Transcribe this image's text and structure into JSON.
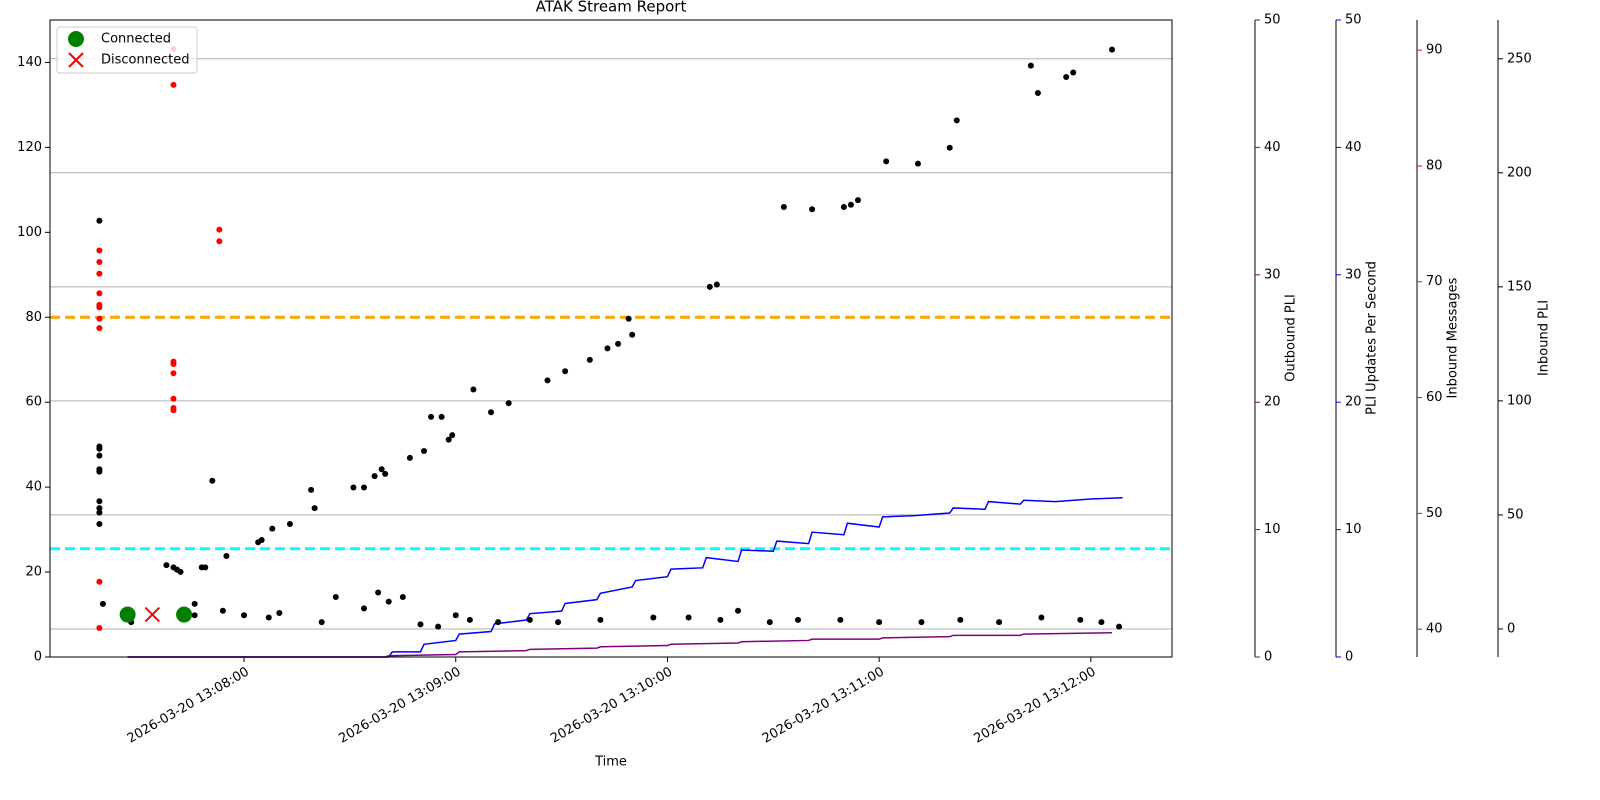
{
  "chart_data": {
    "type": "scatter",
    "title": "ATAK Stream Report",
    "xlabel": "Time",
    "xlim": [
      "2026-03-20 13:07:05",
      "2026-03-20 13:12:23"
    ],
    "xticks": [
      "2026-03-20 13:08:00",
      "2026-03-20 13:09:00",
      "2026-03-20 13:10:00",
      "2026-03-20 13:11:00",
      "2026-03-20 13:12:00"
    ],
    "ylim": [
      0,
      150
    ],
    "yticks": [
      0,
      20,
      40,
      60,
      80,
      100,
      120,
      140
    ],
    "y2label": "Outbound PLI",
    "y2color": "purple",
    "y2lim": [
      0,
      50
    ],
    "y2ticks": [
      0,
      10,
      20,
      30,
      40,
      50
    ],
    "y3label": "PLI Updates Per Second",
    "y3color": "blue",
    "y3lim": [
      0,
      50
    ],
    "y3ticks": [
      0,
      10,
      20,
      30,
      40,
      50
    ],
    "y4label": "Inbound Messages",
    "y4color": "red",
    "y4lim": [
      37.6,
      92.6
    ],
    "y4ticks": [
      40,
      50,
      60,
      70,
      80,
      90
    ],
    "y5label": "Inbound PLI",
    "y5color": "black",
    "y5lim": [
      -12.3,
      267
    ],
    "y5ticks": [
      0,
      50,
      100,
      150,
      200,
      250
    ],
    "grid": "y5",
    "legend": "upper left",
    "hlines": [
      {
        "value": 80,
        "color": "orange"
      },
      {
        "value": 25.5,
        "color": "cyan"
      }
    ],
    "series": [
      {
        "type": "line",
        "axis": "y3",
        "color": "blue",
        "x": [
          "2026-03-20 13:07:27",
          "2026-03-20 13:08:41",
          "2026-03-20 13:08:42",
          "2026-03-20 13:08:50",
          "2026-03-20 13:08:51",
          "2026-03-20 13:09:00",
          "2026-03-20 13:09:01",
          "2026-03-20 13:09:10",
          "2026-03-20 13:09:11",
          "2026-03-20 13:09:20",
          "2026-03-20 13:09:21",
          "2026-03-20 13:09:30",
          "2026-03-20 13:09:31",
          "2026-03-20 13:09:40",
          "2026-03-20 13:09:41",
          "2026-03-20 13:09:50",
          "2026-03-20 13:09:51",
          "2026-03-20 13:10:00",
          "2026-03-20 13:10:01",
          "2026-03-20 13:10:10",
          "2026-03-20 13:10:11",
          "2026-03-20 13:10:20",
          "2026-03-20 13:10:21",
          "2026-03-20 13:10:30",
          "2026-03-20 13:10:31",
          "2026-03-20 13:10:40",
          "2026-03-20 13:10:41",
          "2026-03-20 13:10:50",
          "2026-03-20 13:10:51",
          "2026-03-20 13:11:00",
          "2026-03-20 13:11:01",
          "2026-03-20 13:11:10",
          "2026-03-20 13:11:20",
          "2026-03-20 13:11:21",
          "2026-03-20 13:11:30",
          "2026-03-20 13:11:31",
          "2026-03-20 13:11:40",
          "2026-03-20 13:11:41",
          "2026-03-20 13:11:50",
          "2026-03-20 13:12:00",
          "2026-03-20 13:12:09"
        ],
        "values": [
          0,
          0,
          0.4,
          0.4,
          1.0,
          1.3,
          1.8,
          2.0,
          2.6,
          2.9,
          3.4,
          3.6,
          4.2,
          4.5,
          5.0,
          5.5,
          6.0,
          6.3,
          6.9,
          7.0,
          7.8,
          7.5,
          8.4,
          8.3,
          9.1,
          8.9,
          9.8,
          9.6,
          10.5,
          10.2,
          11.0,
          11.1,
          11.3,
          11.7,
          11.6,
          12.2,
          12.0,
          12.3,
          12.2,
          12.4,
          12.5
        ]
      },
      {
        "type": "line",
        "axis": "y2",
        "color": "purple",
        "x": [
          "2026-03-20 13:07:27",
          "2026-03-20 13:08:40",
          "2026-03-20 13:08:41",
          "2026-03-20 13:09:00",
          "2026-03-20 13:09:01",
          "2026-03-20 13:09:20",
          "2026-03-20 13:09:21",
          "2026-03-20 13:09:40",
          "2026-03-20 13:09:41",
          "2026-03-20 13:10:00",
          "2026-03-20 13:10:01",
          "2026-03-20 13:10:20",
          "2026-03-20 13:10:21",
          "2026-03-20 13:10:40",
          "2026-03-20 13:10:41",
          "2026-03-20 13:11:00",
          "2026-03-20 13:11:01",
          "2026-03-20 13:11:20",
          "2026-03-20 13:11:21",
          "2026-03-20 13:11:40",
          "2026-03-20 13:11:41",
          "2026-03-20 13:12:06"
        ],
        "values": [
          0,
          0,
          0.1,
          0.2,
          0.4,
          0.5,
          0.6,
          0.7,
          0.8,
          0.9,
          1.0,
          1.1,
          1.2,
          1.3,
          1.4,
          1.4,
          1.5,
          1.6,
          1.7,
          1.7,
          1.8,
          1.9
        ]
      },
      {
        "type": "scatter",
        "axis": "y4",
        "color": "red",
        "marker": "dot",
        "x": [
          "2026-03-20 13:07:19",
          "2026-03-20 13:07:19",
          "2026-03-20 13:07:19",
          "2026-03-20 13:07:19",
          "2026-03-20 13:07:19",
          "2026-03-20 13:07:19",
          "2026-03-20 13:07:19",
          "2026-03-20 13:07:19",
          "2026-03-20 13:07:19",
          "2026-03-20 13:07:19",
          "2026-03-20 13:07:40",
          "2026-03-20 13:07:40",
          "2026-03-20 13:07:40",
          "2026-03-20 13:07:40",
          "2026-03-20 13:07:40",
          "2026-03-20 13:07:40",
          "2026-03-20 13:07:40",
          "2026-03-20 13:07:40",
          "2026-03-20 13:07:53",
          "2026-03-20 13:07:53"
        ],
        "values": [
          72.7,
          71.7,
          70.7,
          69.0,
          68.0,
          67.8,
          66.8,
          66.0,
          44.1,
          40.1,
          90.1,
          87.0,
          63.1,
          62.9,
          62.1,
          59.9,
          59.1,
          58.9,
          74.5,
          73.5
        ]
      },
      {
        "type": "scatter",
        "axis": "y5",
        "color": "black",
        "marker": "dot",
        "x": [
          "2026-03-20 13:07:19",
          "2026-03-20 13:07:19",
          "2026-03-20 13:07:19",
          "2026-03-20 13:07:19",
          "2026-03-20 13:07:19",
          "2026-03-20 13:07:19",
          "2026-03-20 13:07:19",
          "2026-03-20 13:07:19",
          "2026-03-20 13:07:19",
          "2026-03-20 13:07:19",
          "2026-03-20 13:07:20",
          "2026-03-20 13:07:28",
          "2026-03-20 13:07:38",
          "2026-03-20 13:07:40",
          "2026-03-20 13:07:41",
          "2026-03-20 13:07:42",
          "2026-03-20 13:07:46",
          "2026-03-20 13:07:46",
          "2026-03-20 13:07:48",
          "2026-03-20 13:07:49",
          "2026-03-20 13:07:51",
          "2026-03-20 13:07:54",
          "2026-03-20 13:07:55",
          "2026-03-20 13:08:00",
          "2026-03-20 13:08:04",
          "2026-03-20 13:08:05",
          "2026-03-20 13:08:07",
          "2026-03-20 13:08:08",
          "2026-03-20 13:08:10",
          "2026-03-20 13:08:13",
          "2026-03-20 13:08:19",
          "2026-03-20 13:08:20",
          "2026-03-20 13:08:22",
          "2026-03-20 13:08:26",
          "2026-03-20 13:08:31",
          "2026-03-20 13:08:34",
          "2026-03-20 13:08:34",
          "2026-03-20 13:08:37",
          "2026-03-20 13:08:38",
          "2026-03-20 13:08:39",
          "2026-03-20 13:08:40",
          "2026-03-20 13:08:41",
          "2026-03-20 13:08:45",
          "2026-03-20 13:08:47",
          "2026-03-20 13:08:50",
          "2026-03-20 13:08:51",
          "2026-03-20 13:08:53",
          "2026-03-20 13:08:55",
          "2026-03-20 13:08:56",
          "2026-03-20 13:08:58",
          "2026-03-20 13:08:59",
          "2026-03-20 13:09:00",
          "2026-03-20 13:09:04",
          "2026-03-20 13:09:05",
          "2026-03-20 13:09:10",
          "2026-03-20 13:09:12",
          "2026-03-20 13:09:15",
          "2026-03-20 13:09:21",
          "2026-03-20 13:09:26",
          "2026-03-20 13:09:29",
          "2026-03-20 13:09:31",
          "2026-03-20 13:09:38",
          "2026-03-20 13:09:41",
          "2026-03-20 13:09:43",
          "2026-03-20 13:09:46",
          "2026-03-20 13:09:49",
          "2026-03-20 13:09:50",
          "2026-03-20 13:09:56",
          "2026-03-20 13:10:06",
          "2026-03-20 13:10:12",
          "2026-03-20 13:10:14",
          "2026-03-20 13:10:15",
          "2026-03-20 13:10:20",
          "2026-03-20 13:10:29",
          "2026-03-20 13:10:33",
          "2026-03-20 13:10:37",
          "2026-03-20 13:10:41",
          "2026-03-20 13:10:49",
          "2026-03-20 13:10:50",
          "2026-03-20 13:10:52",
          "2026-03-20 13:10:54",
          "2026-03-20 13:11:00",
          "2026-03-20 13:11:02",
          "2026-03-20 13:11:11",
          "2026-03-20 13:11:12",
          "2026-03-20 13:11:20",
          "2026-03-20 13:11:22",
          "2026-03-20 13:11:23",
          "2026-03-20 13:11:34",
          "2026-03-20 13:11:43",
          "2026-03-20 13:11:45",
          "2026-03-20 13:11:46",
          "2026-03-20 13:11:53",
          "2026-03-20 13:11:55",
          "2026-03-20 13:11:57",
          "2026-03-20 13:12:03",
          "2026-03-20 13:12:06",
          "2026-03-20 13:12:08"
        ],
        "values": [
          179,
          80,
          79,
          76,
          70,
          69,
          56,
          53,
          51,
          46,
          11,
          3,
          28,
          27,
          26,
          25,
          11,
          6,
          27,
          27,
          65,
          8,
          32,
          6,
          38,
          39,
          5,
          44,
          7,
          46,
          61,
          53,
          3,
          14,
          62,
          62,
          9,
          67,
          16,
          70,
          68,
          12,
          14,
          75,
          2,
          78,
          93,
          1,
          93,
          83,
          85,
          6,
          4,
          105,
          95,
          3,
          99,
          4,
          109,
          3,
          113,
          118,
          4,
          123,
          125,
          136,
          129,
          5,
          5,
          150,
          151,
          4,
          8,
          3,
          185,
          4,
          184,
          4,
          185,
          186,
          188,
          3,
          205,
          204,
          3,
          211,
          223,
          4,
          3,
          247,
          235,
          5,
          242,
          244,
          4,
          3,
          254,
          1
        ]
      },
      {
        "type": "scatter",
        "name": "Connected",
        "axis": "y",
        "color": "green",
        "marker": "o",
        "x": [
          "2026-03-20 13:07:27",
          "2026-03-20 13:07:43"
        ],
        "values": [
          10,
          10
        ]
      },
      {
        "type": "scatter",
        "name": "Disconnected",
        "axis": "y",
        "color": "red",
        "marker": "x",
        "x": [
          "2026-03-20 13:07:34"
        ],
        "values": [
          10
        ]
      }
    ]
  }
}
